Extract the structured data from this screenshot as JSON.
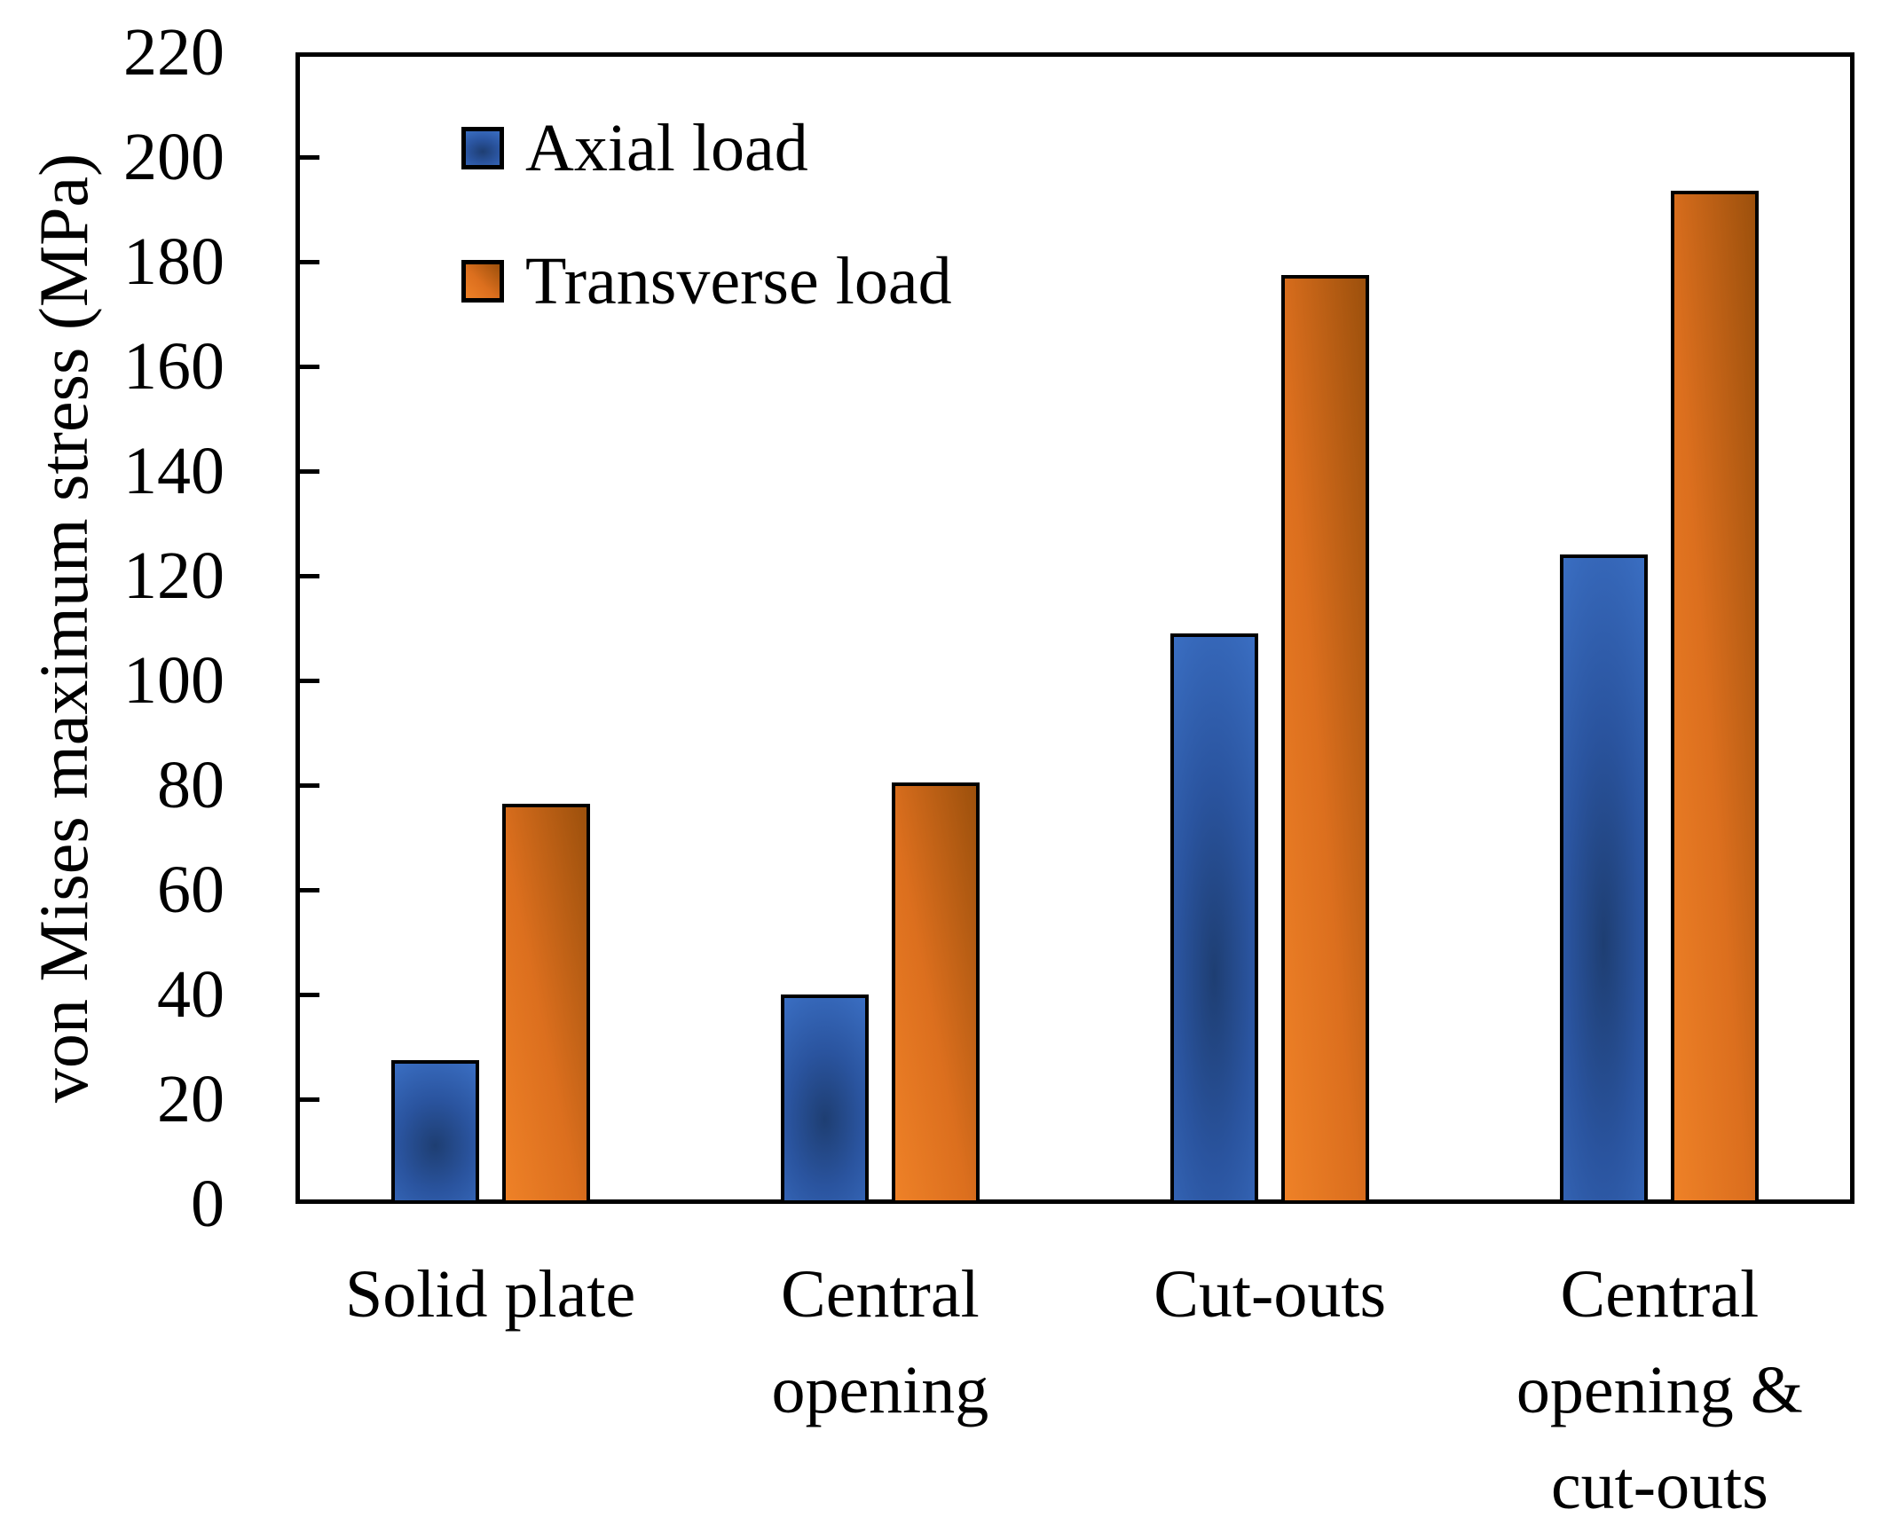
{
  "figure": {
    "background": "#ffffff",
    "axis_color": "#000000",
    "y_axis_title": "von Mises maximum stress (MPa)"
  },
  "chart_data": {
    "type": "bar",
    "title": "",
    "xlabel": "",
    "ylabel": "von Mises maximum stress (MPa)",
    "ylim": [
      0,
      220
    ],
    "ytick_step": 20,
    "yticks": [
      0,
      20,
      40,
      60,
      80,
      100,
      120,
      140,
      160,
      180,
      200,
      220
    ],
    "grid": false,
    "legend_position": "upper-left-inside",
    "categories": [
      "Solid plate",
      "Central opening",
      "Cut-outs",
      "Central opening & cut-outs"
    ],
    "category_lines": [
      [
        "Solid plate"
      ],
      [
        "Central",
        "opening"
      ],
      [
        "Cut-outs"
      ],
      [
        "Central",
        "opening &",
        "cut-outs"
      ]
    ],
    "series": [
      {
        "name": "Axial load",
        "values": [
          27.5,
          40,
          109,
          124
        ],
        "gradient": "radial",
        "color_light": "#3a6ec2",
        "color_mid": "#2a549f",
        "color_dark": "#1e3e72"
      },
      {
        "name": "Transverse load",
        "values": [
          76.5,
          80.5,
          177.5,
          193.5
        ],
        "gradient": "diagonal",
        "color_light": "#ee8127",
        "color_mid": "#dc6f1e",
        "color_dark": "#9c500c"
      }
    ]
  }
}
